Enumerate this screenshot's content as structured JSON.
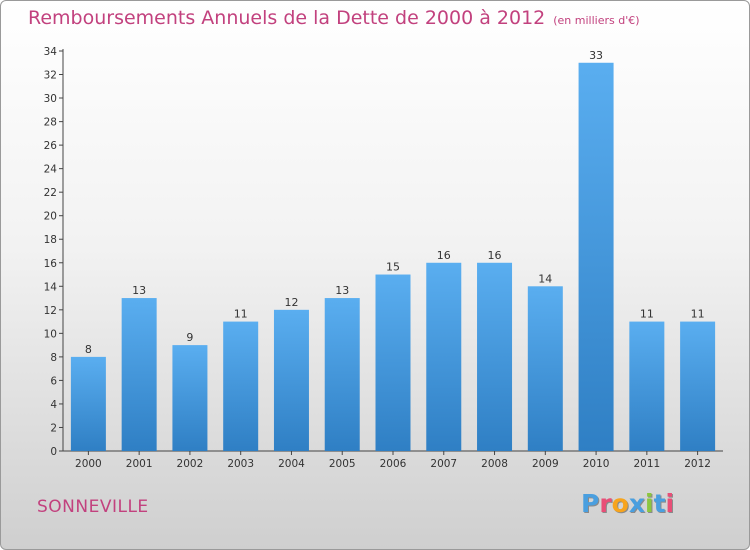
{
  "chart_data": {
    "type": "bar",
    "title": "Remboursements Annuels de la Dette de 2000 à 2012",
    "unit": "(en milliers d'€)",
    "categories": [
      "2000",
      "2001",
      "2002",
      "2003",
      "2004",
      "2005",
      "2006",
      "2007",
      "2008",
      "2009",
      "2010",
      "2011",
      "2012"
    ],
    "values": [
      8,
      13,
      9,
      11,
      12,
      13,
      15,
      16,
      16,
      14,
      33,
      11,
      11
    ],
    "ylim": [
      0,
      34
    ],
    "yticks": [
      0,
      2,
      4,
      6,
      8,
      10,
      12,
      14,
      16,
      18,
      20,
      22,
      24,
      26,
      28,
      30,
      32,
      34
    ],
    "grid": false,
    "bar_color": "#4a9fdf"
  },
  "footer": {
    "city": "SONNEVILLE",
    "logo": "Proxiti",
    "logo_colors": [
      "#4a9fdf",
      "#e94e77",
      "#f7a41d",
      "#4a9fdf",
      "#8cc63f",
      "#4a9fdf",
      "#e94e77"
    ]
  }
}
